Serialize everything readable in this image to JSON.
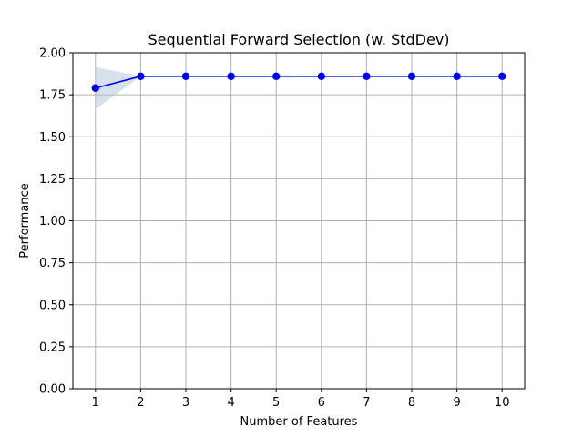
{
  "chart_data": {
    "type": "line",
    "title": "Sequential Forward Selection (w. StdDev)",
    "xlabel": "Number of Features",
    "ylabel": "Performance",
    "x": [
      1,
      2,
      3,
      4,
      5,
      6,
      7,
      8,
      9,
      10
    ],
    "series": [
      {
        "values": [
          1.79,
          1.86,
          1.86,
          1.86,
          1.86,
          1.86,
          1.86,
          1.86,
          1.86,
          1.86
        ],
        "std": [
          0.125,
          0,
          0,
          0,
          0,
          0,
          0,
          0,
          0,
          0
        ],
        "color": "#0000ff",
        "band_color": "#b0c4de"
      }
    ],
    "xlim": [
      0.5,
      10.5
    ],
    "ylim": [
      0,
      2
    ],
    "x_ticks": [
      "1",
      "2",
      "3",
      "4",
      "5",
      "6",
      "7",
      "8",
      "9",
      "10"
    ],
    "y_ticks": [
      "0.00",
      "0.25",
      "0.50",
      "0.75",
      "1.00",
      "1.25",
      "1.50",
      "1.75",
      "2.00"
    ],
    "y_tick_values": [
      0,
      0.25,
      0.5,
      0.75,
      1.0,
      1.25,
      1.5,
      1.75,
      2.0
    ],
    "grid": true
  }
}
